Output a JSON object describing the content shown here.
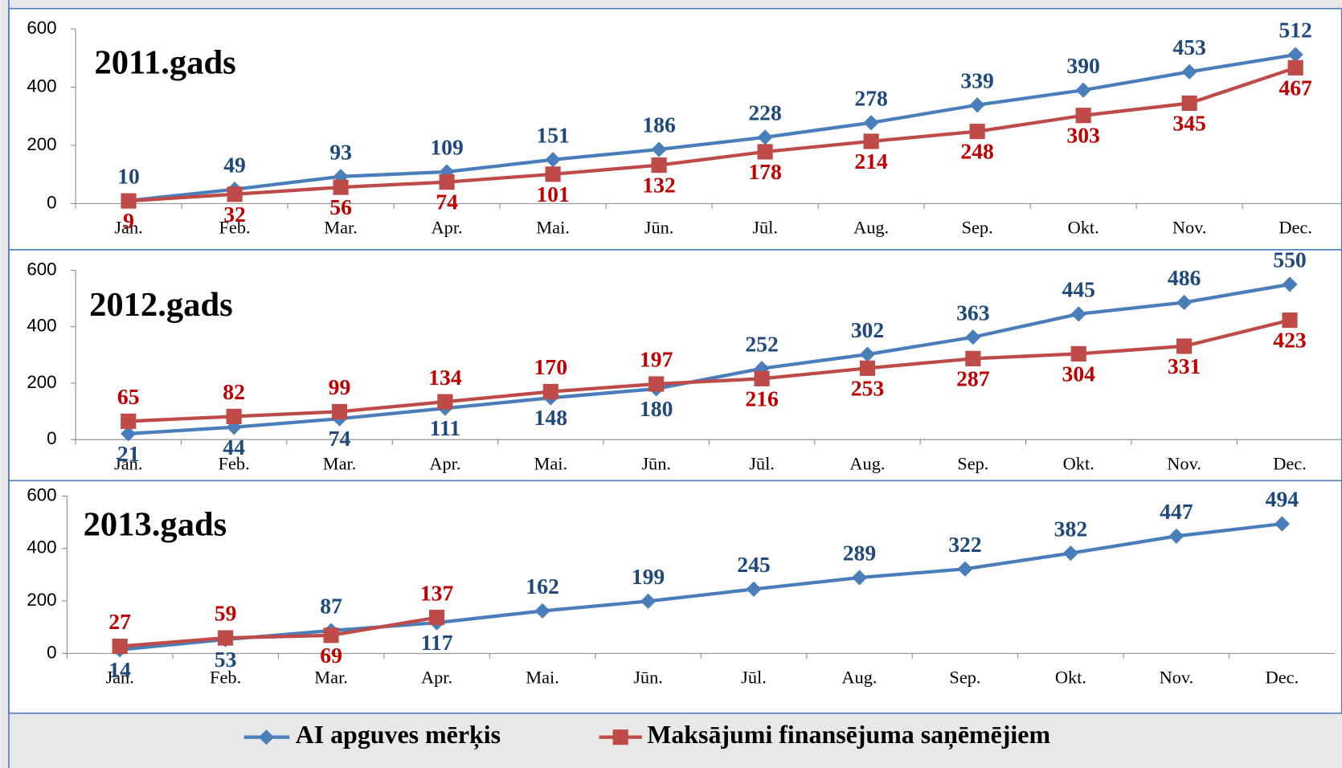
{
  "chart_data": [
    {
      "type": "line",
      "title": "2011.gads",
      "categories": [
        "Jan.",
        "Feb.",
        "Mar.",
        "Apr.",
        "Mai.",
        "Jūn.",
        "Jūl.",
        "Aug.",
        "Sep.",
        "Okt.",
        "Nov.",
        "Dec."
      ],
      "series": [
        {
          "name": "AI apguves mērķis",
          "color": "#4a7ebb",
          "values": [
            10,
            49,
            93,
            109,
            151,
            186,
            228,
            278,
            339,
            390,
            453,
            512
          ]
        },
        {
          "name": "Maksājumi finansējuma saņēmējiem",
          "color": "#be4b48",
          "values": [
            9,
            32,
            56,
            74,
            101,
            132,
            178,
            214,
            248,
            303,
            345,
            467
          ]
        }
      ],
      "ylim": [
        0,
        600
      ],
      "yticks": [
        0,
        200,
        400,
        600
      ]
    },
    {
      "type": "line",
      "title": "2012.gads",
      "categories": [
        "Jan.",
        "Feb.",
        "Mar.",
        "Apr.",
        "Mai.",
        "Jūn.",
        "Jūl.",
        "Aug.",
        "Sep.",
        "Okt.",
        "Nov.",
        "Dec."
      ],
      "series": [
        {
          "color": "#4a7ebb",
          "values": [
            21,
            44,
            74,
            111,
            148,
            180,
            252,
            302,
            363,
            445,
            486,
            550
          ]
        },
        {
          "color": "#be4b48",
          "values": [
            65,
            82,
            99,
            134,
            170,
            197,
            216,
            253,
            287,
            304,
            331,
            423
          ]
        }
      ],
      "ylim": [
        0,
        600
      ],
      "yticks": [
        0,
        200,
        400,
        600
      ]
    },
    {
      "type": "line",
      "title": "2013.gads",
      "categories": [
        "Jan.",
        "Feb.",
        "Mar.",
        "Apr.",
        "Mai.",
        "Jūn.",
        "Jūl.",
        "Aug.",
        "Sep.",
        "Okt.",
        "Nov.",
        "Dec."
      ],
      "series": [
        {
          "color": "#4a7ebb",
          "values": [
            14,
            53,
            87,
            117,
            162,
            199,
            245,
            289,
            322,
            382,
            447,
            494
          ]
        },
        {
          "color": "#be4b48",
          "values": [
            27,
            59,
            69,
            137,
            null,
            null,
            null,
            null,
            null,
            null,
            null,
            null
          ]
        }
      ],
      "ylim": [
        0,
        600
      ],
      "yticks": [
        0,
        200,
        400,
        600
      ]
    }
  ]
}
